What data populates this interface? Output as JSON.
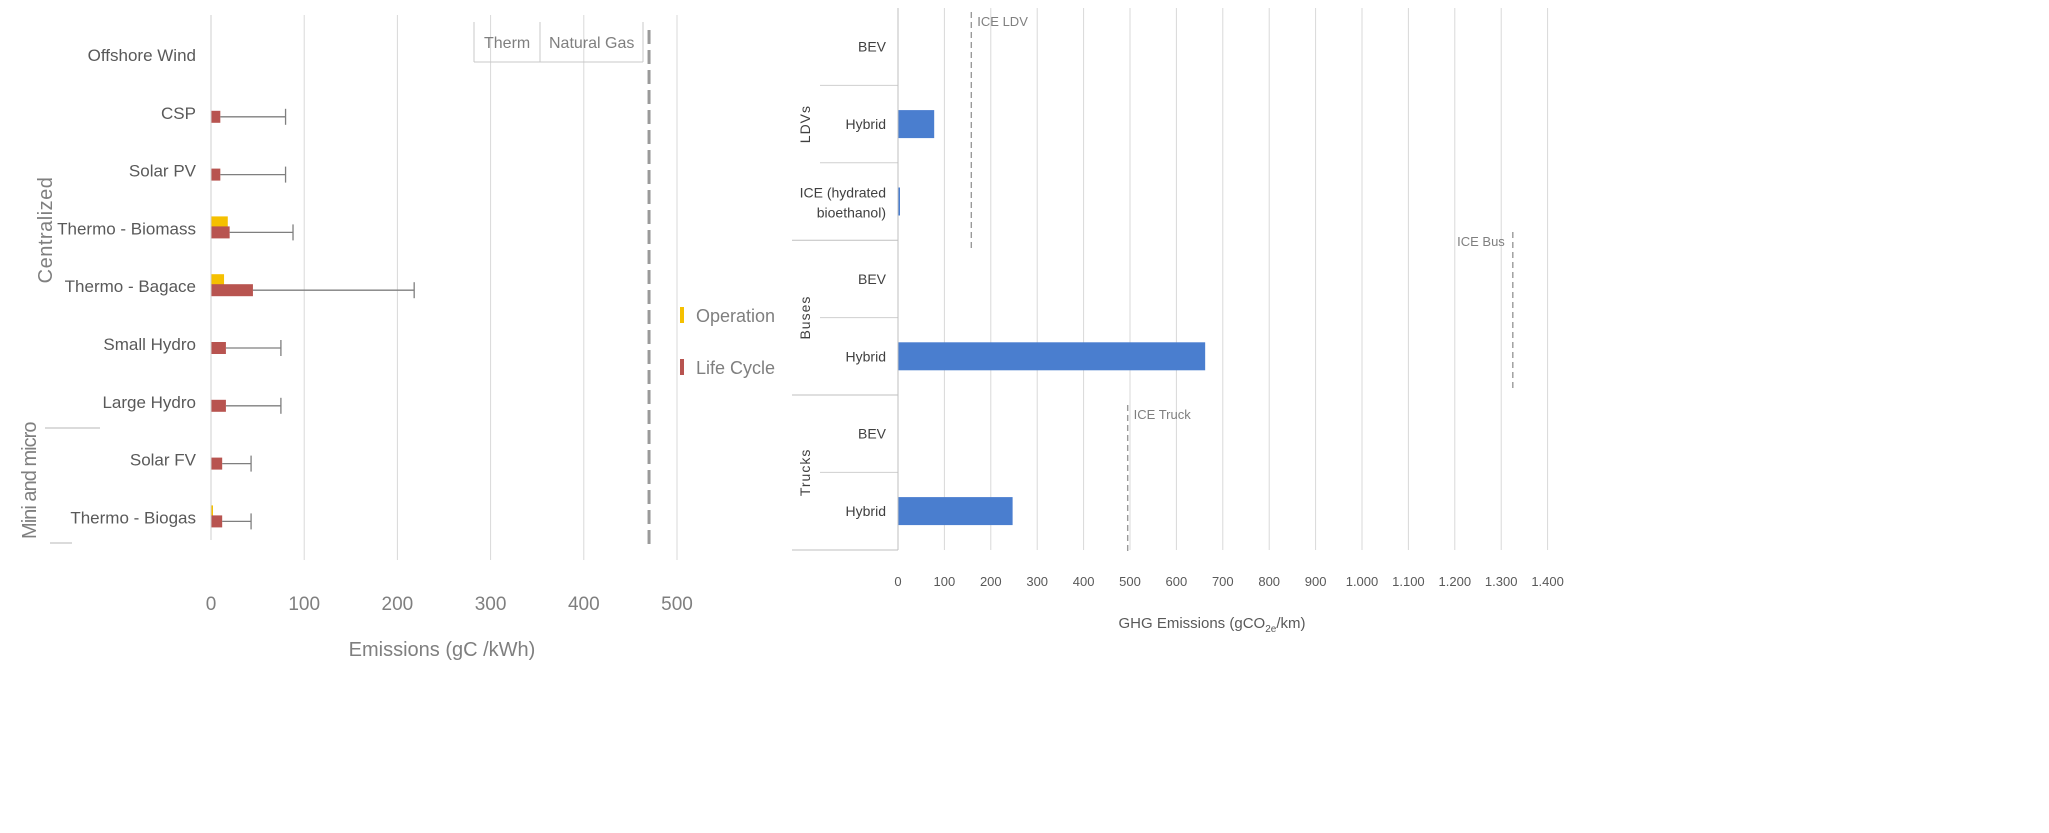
{
  "chart_data": [
    {
      "type": "bar",
      "orientation": "horizontal",
      "group_labels": [
        "Centralized",
        "Mini and micro"
      ],
      "categories": [
        "Offshore Wind",
        "CSP",
        "Solar PV",
        "Thermo - Biomass",
        "Thermo - Bagace",
        "Small Hydro",
        "Large Hydro",
        "Solar FV",
        "Thermo - Biogas"
      ],
      "series": [
        {
          "name": "Operation",
          "color": "#f5c000",
          "values": [
            0,
            0,
            0,
            18,
            14,
            0,
            0,
            0,
            2
          ]
        },
        {
          "name": "Life Cycle",
          "color": "#b85450",
          "values": [
            0,
            10,
            10,
            20,
            45,
            16,
            16,
            12,
            12
          ]
        }
      ],
      "error_bar_upper": [
        null,
        80,
        80,
        88,
        218,
        75,
        75,
        43,
        43
      ],
      "xticks": [
        "0",
        "100",
        "200",
        "300",
        "400",
        "500"
      ],
      "xlim": [
        0,
        520
      ],
      "xlabel": "Emissions (gC /kWh)",
      "table_headers": [
        "Therm",
        "Natural Gas"
      ],
      "reference_line": {
        "value": 470
      },
      "legend_position": "right",
      "grid": true
    },
    {
      "type": "bar",
      "orientation": "horizontal",
      "groups": [
        {
          "label": "LDVs",
          "categories": [
            "BEV",
            "Hybrid",
            "ICE (hydrated bioethanol)"
          ]
        },
        {
          "label": "Buses",
          "categories": [
            "BEV",
            "Hybrid"
          ]
        },
        {
          "label": "Trucks",
          "categories": [
            "BEV",
            "Hybrid"
          ]
        }
      ],
      "series": [
        {
          "color": "#4a7ecf",
          "values": [
            0,
            78,
            3,
            0,
            662,
            0,
            247
          ]
        }
      ],
      "reference_lines": [
        {
          "label": "ICE LDV",
          "value": 158
        },
        {
          "label": "ICE Bus",
          "value": 1325
        },
        {
          "label": "ICE Truck",
          "value": 495
        }
      ],
      "xticks": [
        "0",
        "100",
        "200",
        "300",
        "400",
        "500",
        "600",
        "700",
        "800",
        "900",
        "1.000",
        "1.100",
        "1.200",
        "1.300",
        "1.400"
      ],
      "xlim": [
        0,
        1400
      ],
      "xlabel_main": "GHG Emissions (gCO",
      "xlabel_sub": "2e",
      "xlabel_end": "/km)",
      "grid": true
    }
  ]
}
